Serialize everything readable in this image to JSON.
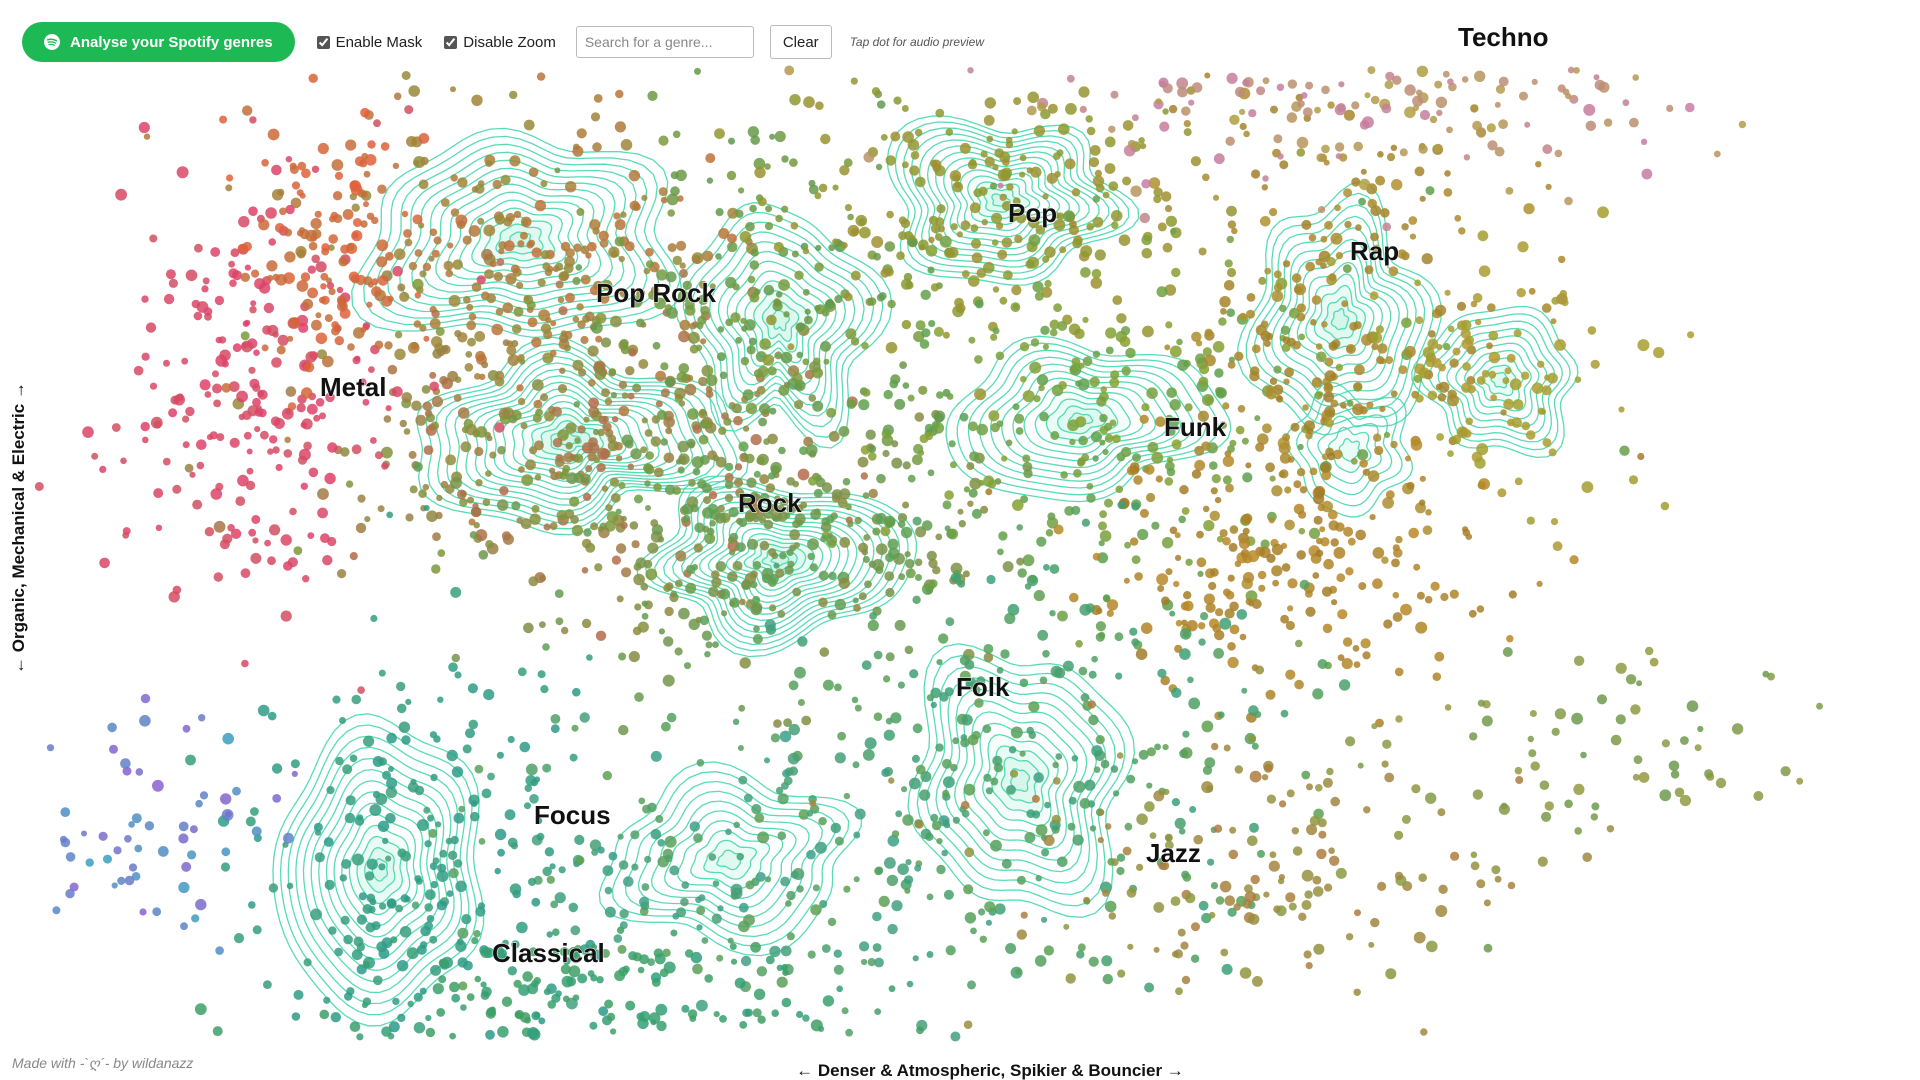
{
  "toolbar": {
    "analyse_label": "Analyse your Spotify genres",
    "enable_mask_label": "Enable Mask",
    "enable_mask_checked": true,
    "disable_zoom_label": "Disable Zoom",
    "disable_zoom_checked": true,
    "search_placeholder": "Search for a genre...",
    "clear_label": "Clear",
    "hint": "Tap dot for audio preview"
  },
  "axes": {
    "x_label": "← Denser & Atmospheric, Spikier & Bouncier →",
    "y_label": "← Organic, Mechanical & Electric →"
  },
  "genre_labels": [
    "Techno",
    "Pop",
    "Pop Rock",
    "Rap",
    "Metal",
    "Funk",
    "Rock",
    "Folk",
    "Focus",
    "Jazz",
    "Classical"
  ],
  "credit": "Made with -`ღ´- by wildanazz",
  "colors": {
    "spotify_green": "#1db954",
    "contour": "#3cd6a8"
  }
}
